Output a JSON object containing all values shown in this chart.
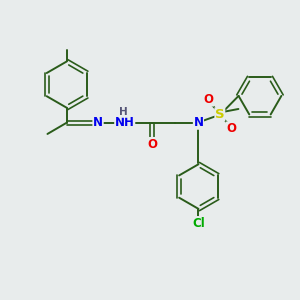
{
  "bg_color": "#e8ecec",
  "bond_color": "#2a5c1a",
  "bond_width": 1.4,
  "atom_colors": {
    "N": "#0000ee",
    "O": "#ee0000",
    "S": "#cccc00",
    "Cl": "#00aa00",
    "C": "#2a5c1a",
    "H": "#555577"
  },
  "font_size": 8.5,
  "layout": {
    "xlim": [
      0,
      10
    ],
    "ylim": [
      0,
      10
    ]
  }
}
